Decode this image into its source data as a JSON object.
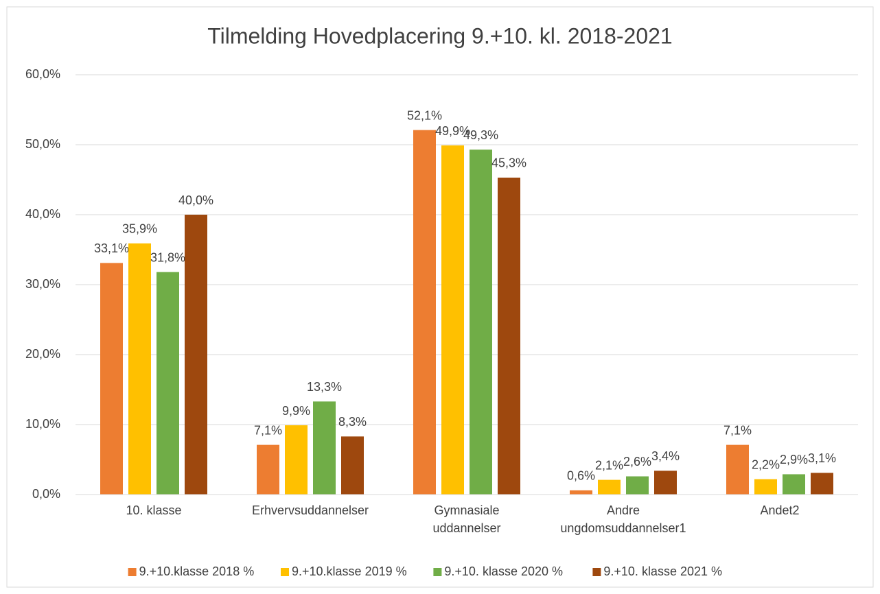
{
  "chart_data": {
    "type": "bar",
    "title": "Tilmelding Hovedplacering 9.+10. kl. 2018-2021",
    "categories": [
      "10. klasse",
      "Erhvervsuddannelser",
      "Gymnasiale\nuddannelser",
      "Andre\nungdomsuddannelser1",
      "Andet2"
    ],
    "series": [
      {
        "name": "9.+10.klasse 2018 %",
        "color": "#ED7D31",
        "values": [
          33.1,
          7.1,
          52.1,
          0.6,
          7.1
        ],
        "value_labels": [
          "33,1%",
          "7,1%",
          "52,1%",
          "0,6%",
          "7,1%"
        ]
      },
      {
        "name": "9.+10.klasse 2019 %",
        "color": "#FFC000",
        "values": [
          35.9,
          9.9,
          49.9,
          2.1,
          2.2
        ],
        "value_labels": [
          "35,9%",
          "9,9%",
          "49,9%",
          "2,1%",
          "2,2%"
        ]
      },
      {
        "name": "9.+10. klasse 2020 %",
        "color": "#70AD47",
        "values": [
          31.8,
          13.3,
          49.3,
          2.6,
          2.9
        ],
        "value_labels": [
          "31,8%",
          "13,3%",
          "49,3%",
          "2,6%",
          "2,9%"
        ]
      },
      {
        "name": "9.+10. klasse 2021 %",
        "color": "#9E480E",
        "values": [
          40.0,
          8.3,
          45.3,
          3.4,
          3.1
        ],
        "value_labels": [
          "40,0%",
          "8,3%",
          "45,3%",
          "3,4%",
          "3,1%"
        ]
      }
    ],
    "ylim": [
      0,
      60
    ],
    "yticks": [
      {
        "value": 0,
        "label": "0,0%"
      },
      {
        "value": 10,
        "label": "10,0%"
      },
      {
        "value": 20,
        "label": "20,0%"
      },
      {
        "value": 30,
        "label": "30,0%"
      },
      {
        "value": 40,
        "label": "40,0%"
      },
      {
        "value": 50,
        "label": "50,0%"
      },
      {
        "value": 60,
        "label": "60,0%"
      }
    ],
    "grid": true,
    "legend": "bottom"
  }
}
